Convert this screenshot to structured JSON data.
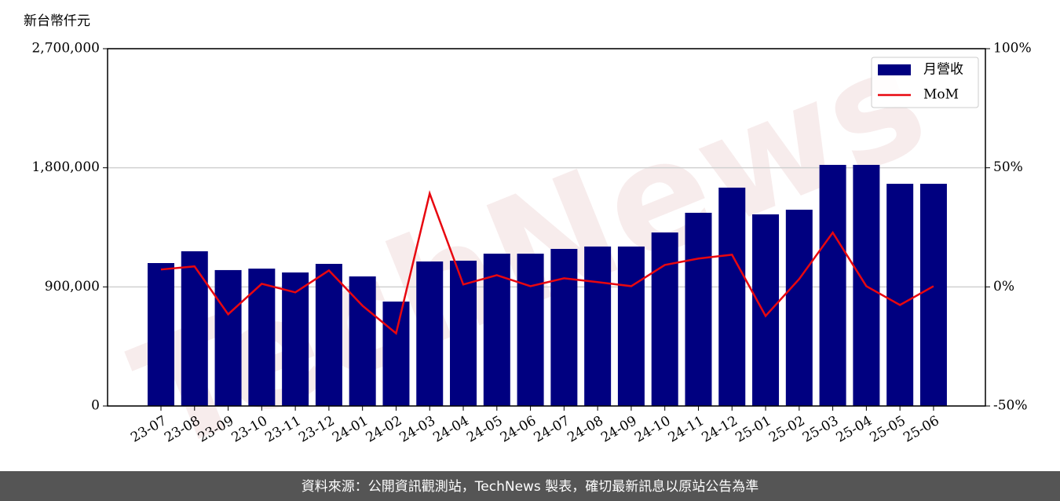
{
  "chart_data": {
    "type": "bar",
    "y_axis_label": "新台幣仟元",
    "watermark": "TechNews",
    "categories": [
      "23-07",
      "23-08",
      "23-09",
      "23-10",
      "23-11",
      "23-12",
      "24-01",
      "24-02",
      "24-03",
      "24-04",
      "24-05",
      "24-06",
      "24-07",
      "24-08",
      "24-09",
      "24-10",
      "24-11",
      "24-12",
      "25-01",
      "25-02",
      "25-03",
      "25-04",
      "25-05",
      "25-06"
    ],
    "series": [
      {
        "name": "月營收",
        "type": "bar",
        "color": "#000080",
        "values": [
          1080000,
          1169000,
          1027000,
          1038000,
          1009000,
          1074000,
          979000,
          789000,
          1092000,
          1098000,
          1151000,
          1151000,
          1187000,
          1205000,
          1205000,
          1311000,
          1460000,
          1650000,
          1448000,
          1483000,
          1822000,
          1822000,
          1679000,
          1679000
        ]
      },
      {
        "name": "MoM",
        "type": "line",
        "color": "#e8070f",
        "axis": "y2",
        "values": [
          7.3,
          8.6,
          -11.5,
          1.3,
          -2.3,
          6.9,
          -7.9,
          -19.5,
          39.2,
          1.0,
          4.9,
          0.3,
          3.6,
          2.0,
          0.3,
          9.2,
          11.9,
          13.5,
          -12.2,
          3.3,
          22.8,
          0.3,
          -7.6,
          0.3
        ]
      }
    ],
    "ylim": [
      0,
      2700000
    ],
    "yticks": [
      0,
      {
        "value": 900000,
        "label": "900,000"
      },
      {
        "value": 1800000,
        "label": "1,800,000"
      },
      {
        "value": 2700000,
        "label": "2,700,000"
      }
    ],
    "y2lim": [
      -50,
      100
    ],
    "y2ticks": [
      {
        "value": -50,
        "label": "-50%"
      },
      {
        "value": 0,
        "label": "0%"
      },
      {
        "value": 50,
        "label": "50%"
      },
      {
        "value": 100,
        "label": "100%"
      }
    ],
    "grid": true,
    "legend": "upper-right"
  },
  "footer": "資料來源：公開資訊觀測站，TechNews 製表，確切最新訊息以原站公告為準"
}
